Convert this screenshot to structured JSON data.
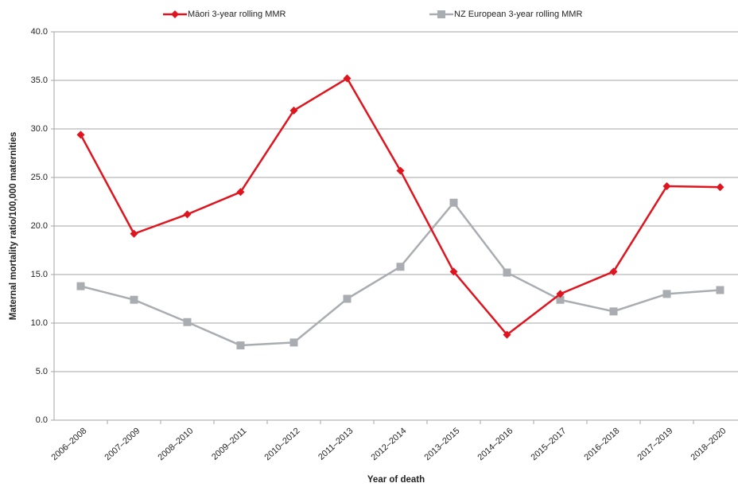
{
  "chart_data": {
    "type": "line",
    "x_label": "Year of death",
    "y_label": "Maternal mortality ratio/100,000 maternities",
    "categories": [
      "2006–2008",
      "2007–2009",
      "2008–2010",
      "2009–2011",
      "2010–2012",
      "2011–2013",
      "2012–2014",
      "2013–2015",
      "2014–2016",
      "2015–2017",
      "2016–2018",
      "2017–2019",
      "2018–2020"
    ],
    "series": [
      {
        "name": "Māori 3-year rolling MMR",
        "color": "#e0141e",
        "marker": "diamond",
        "values": [
          29.4,
          19.2,
          21.2,
          23.5,
          31.9,
          35.2,
          25.7,
          15.3,
          8.8,
          13.0,
          15.3,
          24.1,
          24.0
        ]
      },
      {
        "name": "NZ European 3-year rolling MMR",
        "color": "#a9adb1",
        "marker": "square",
        "values": [
          13.8,
          12.4,
          10.1,
          7.7,
          8.0,
          12.5,
          15.8,
          22.4,
          15.2,
          12.4,
          11.2,
          13.0,
          13.4
        ]
      }
    ],
    "ylim": [
      0,
      40
    ],
    "yticks": [
      {
        "value": 0,
        "label": "0.0"
      },
      {
        "value": 5,
        "label": "5.0"
      },
      {
        "value": 10,
        "label": "10.0"
      },
      {
        "value": 15,
        "label": "15.0"
      },
      {
        "value": 20,
        "label": "20.0"
      },
      {
        "value": 25,
        "label": "25.0"
      },
      {
        "value": 30,
        "label": "30.0"
      },
      {
        "value": 35,
        "label": "35.0"
      },
      {
        "value": 40,
        "label": "40.0"
      }
    ],
    "grid": true,
    "legend": "top"
  }
}
